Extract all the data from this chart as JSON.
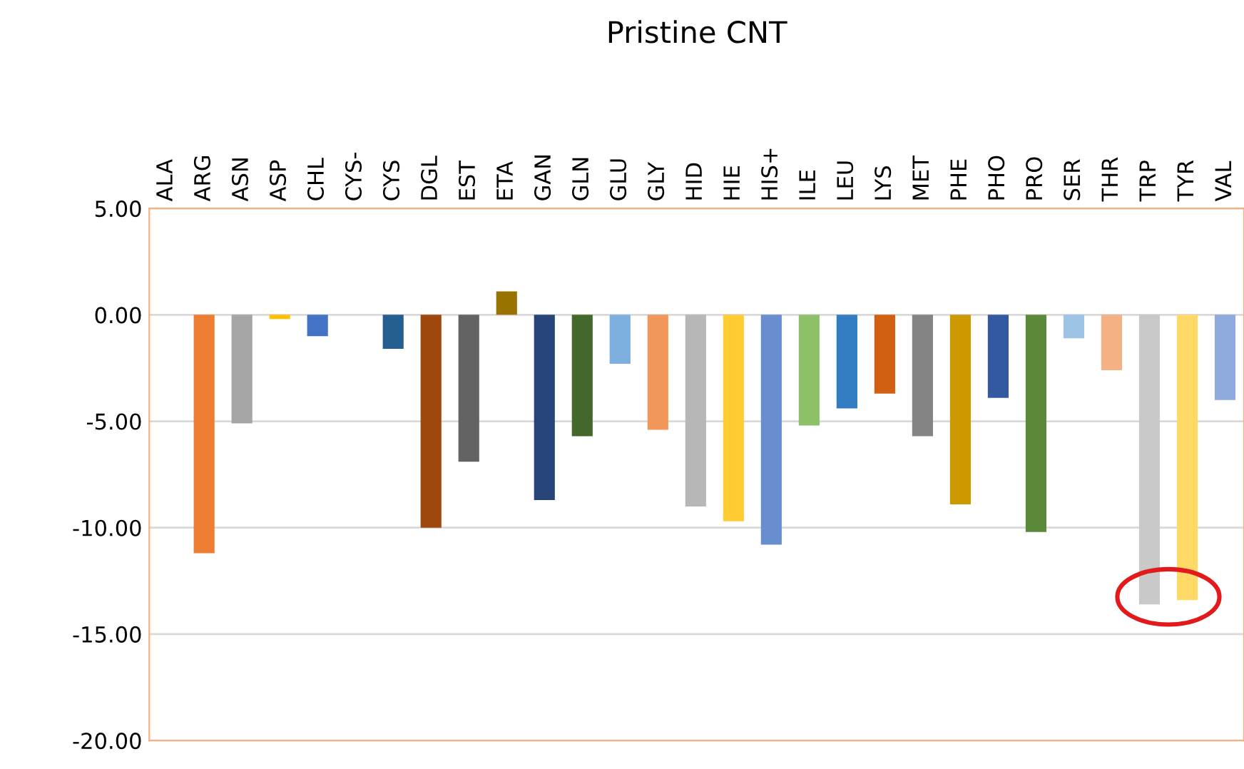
{
  "chart_data": {
    "type": "bar",
    "title": "Pristine CNT",
    "categories": [
      "ALA",
      "ARG",
      "ASN",
      "ASP",
      "CHL",
      "CYS-",
      "CYS",
      "DGL",
      "EST",
      "ETA",
      "GAN",
      "GLN",
      "GLU",
      "GLY",
      "HID",
      "HIE",
      "HIS+",
      "ILE",
      "LEU",
      "LYS",
      "MET",
      "PHE",
      "PHO",
      "PRO",
      "SER",
      "THR",
      "TRP",
      "TYR",
      "VAL"
    ],
    "values": [
      0,
      -11.2,
      -5.1,
      -0.2,
      -1.0,
      0,
      -1.6,
      -10.0,
      -6.9,
      1.1,
      -8.7,
      -5.7,
      -2.3,
      -5.4,
      -9.0,
      -9.7,
      -10.8,
      -5.2,
      -4.4,
      -3.7,
      -5.7,
      -8.9,
      -3.9,
      -10.2,
      -1.1,
      -2.6,
      -13.6,
      -13.4,
      -4.0
    ],
    "colors": [
      "#5b9bd5",
      "#ed7d31",
      "#a5a5a5",
      "#ffc000",
      "#4472c4",
      "#70ad47",
      "#255e91",
      "#9e480e",
      "#636363",
      "#997300",
      "#264478",
      "#43682b",
      "#7cafdd",
      "#f1975a",
      "#b7b7b7",
      "#ffcd33",
      "#698ed0",
      "#8cc168",
      "#327dc2",
      "#d26012",
      "#848484",
      "#cc9a00",
      "#335aa1",
      "#5a8a39",
      "#9dc3e6",
      "#f4b183",
      "#c9c9c9",
      "#ffd966",
      "#8faadc"
    ],
    "ylim": [
      -20,
      5
    ],
    "yticks": [
      {
        "value": 5,
        "label": "5.00"
      },
      {
        "value": 0,
        "label": "0.00"
      },
      {
        "value": -5,
        "label": "-5.00"
      },
      {
        "value": -10,
        "label": "-10.00"
      },
      {
        "value": -15,
        "label": "-15.00"
      },
      {
        "value": -20,
        "label": "-20.00"
      }
    ],
    "grid": "y",
    "legend": false
  }
}
